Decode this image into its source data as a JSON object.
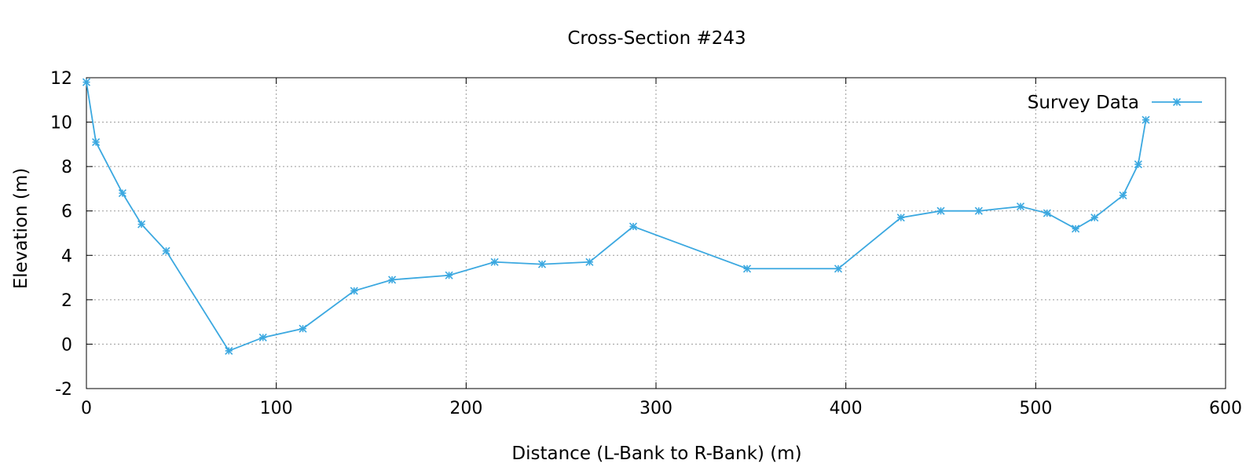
{
  "chart_data": {
    "type": "line",
    "title": "Cross-Section #243",
    "xlabel": "Distance (L-Bank to R-Bank) (m)",
    "ylabel": "Elevation (m)",
    "xlim": [
      0,
      600
    ],
    "ylim": [
      -2,
      12
    ],
    "x_ticks": [
      0,
      100,
      200,
      300,
      400,
      500,
      600
    ],
    "y_ticks": [
      -2,
      0,
      2,
      4,
      6,
      8,
      10,
      12
    ],
    "grid": true,
    "legend_position": "top-right",
    "series": [
      {
        "name": "Survey Data",
        "color": "#3ba8e0",
        "marker": "asterisk",
        "x": [
          0,
          5,
          19,
          29,
          42,
          75,
          93,
          114,
          141,
          161,
          191,
          215,
          240,
          265,
          288,
          348,
          396,
          429,
          450,
          470,
          492,
          506,
          521,
          531,
          546,
          554,
          558
        ],
        "y": [
          11.8,
          9.1,
          6.8,
          5.4,
          4.2,
          -0.3,
          0.3,
          0.7,
          2.4,
          2.9,
          3.1,
          3.7,
          3.6,
          3.7,
          5.3,
          3.4,
          3.4,
          5.7,
          6.0,
          6.0,
          6.2,
          5.9,
          5.2,
          5.7,
          6.7,
          8.1,
          10.1
        ]
      }
    ]
  }
}
